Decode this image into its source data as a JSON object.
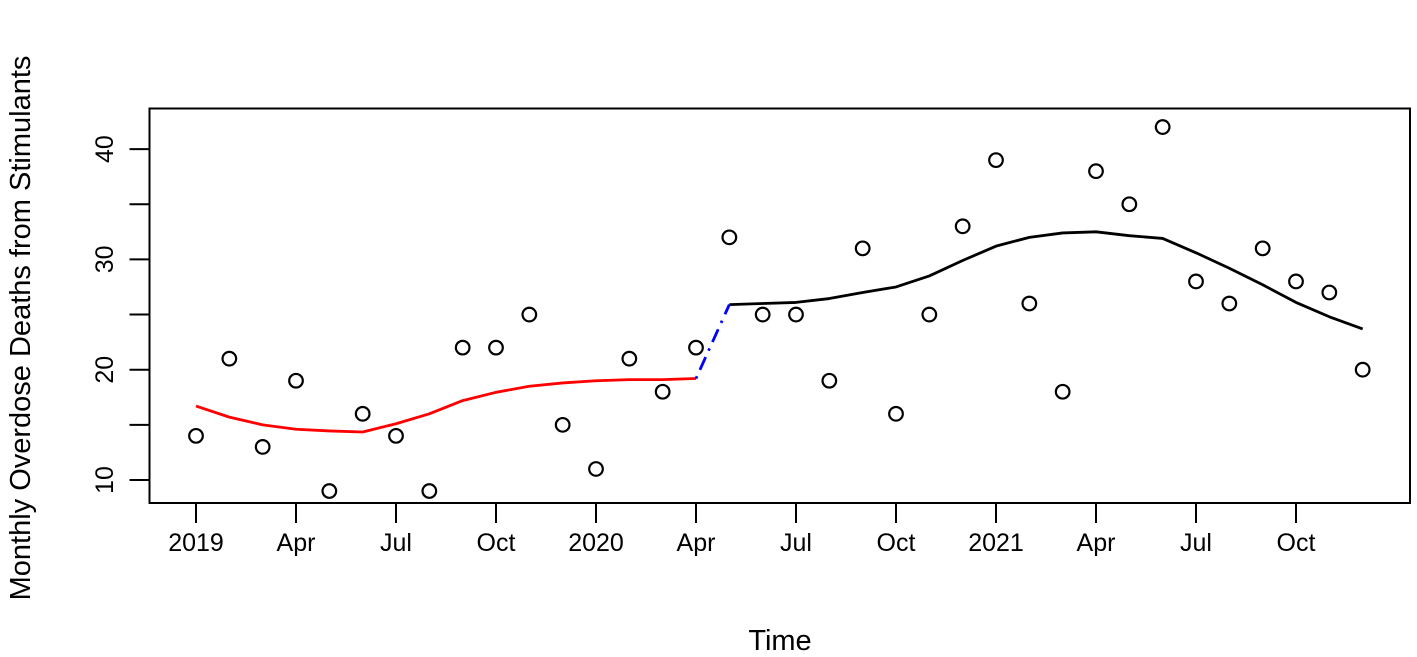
{
  "figure": {
    "background_color": "#FFFFFF",
    "frame_color": "#000000"
  },
  "chart_data": {
    "type": "scatter",
    "title": "",
    "xlabel": "Time",
    "ylabel": "Monthly Overdose Deaths from Stimulants",
    "grid": "off",
    "legend": "none",
    "x_axis": {
      "range": [
        2018.88,
        2022.03
      ],
      "ticks": [
        {
          "pos": 2019.0,
          "label": "2019"
        },
        {
          "pos": 2019.25,
          "label": "Apr"
        },
        {
          "pos": 2019.5,
          "label": "Jul"
        },
        {
          "pos": 2019.75,
          "label": "Oct"
        },
        {
          "pos": 2020.0,
          "label": "2020"
        },
        {
          "pos": 2020.25,
          "label": "Apr"
        },
        {
          "pos": 2020.5,
          "label": "Jul"
        },
        {
          "pos": 2020.75,
          "label": "Oct"
        },
        {
          "pos": 2021.0,
          "label": "2021"
        },
        {
          "pos": 2021.25,
          "label": "Apr"
        },
        {
          "pos": 2021.5,
          "label": "Jul"
        },
        {
          "pos": 2021.75,
          "label": "Oct"
        }
      ]
    },
    "y_axis": {
      "range": [
        7.9,
        43.6
      ],
      "tick_positions": [
        10,
        15,
        20,
        25,
        30,
        35,
        40
      ],
      "tick_labels": [
        {
          "pos": 10,
          "label": "10"
        },
        {
          "pos": 20,
          "label": "20"
        },
        {
          "pos": 30,
          "label": "30"
        },
        {
          "pos": 40,
          "label": "40"
        }
      ]
    },
    "series": [
      {
        "name": "monthly-overdose-deaths-points",
        "kind": "points",
        "marker": "open-circle",
        "color": "#000000",
        "months": [
          "2019-01",
          "2019-02",
          "2019-03",
          "2019-04",
          "2019-05",
          "2019-06",
          "2019-07",
          "2019-08",
          "2019-09",
          "2019-10",
          "2019-11",
          "2019-12",
          "2020-01",
          "2020-02",
          "2020-03",
          "2020-04",
          "2020-05",
          "2020-06",
          "2020-07",
          "2020-08",
          "2020-09",
          "2020-10",
          "2020-11",
          "2020-12",
          "2021-01",
          "2021-02",
          "2021-03",
          "2021-04",
          "2021-05",
          "2021-06",
          "2021-07",
          "2021-08",
          "2021-09",
          "2021-10",
          "2021-11",
          "2021-12"
        ],
        "values": [
          14,
          21,
          13,
          19,
          9,
          16,
          14,
          9,
          22,
          22,
          25,
          15,
          11,
          21,
          18,
          22,
          32,
          25,
          25,
          19,
          31,
          16,
          25,
          33,
          39,
          26,
          18,
          38,
          35,
          42,
          28,
          26,
          31,
          28,
          27,
          20
        ]
      },
      {
        "name": "smooth-fit-pre-period",
        "kind": "line",
        "color": "#FF0000",
        "style": "solid",
        "months": [
          "2019-01",
          "2019-02",
          "2019-03",
          "2019-04",
          "2019-05",
          "2019-06",
          "2019-07",
          "2019-08",
          "2019-09",
          "2019-10",
          "2019-11",
          "2019-12",
          "2020-01",
          "2020-02",
          "2020-03",
          "2020-04"
        ],
        "values": [
          16.7,
          15.7,
          15.0,
          14.6,
          14.45,
          14.35,
          15.1,
          16.0,
          17.2,
          17.95,
          18.5,
          18.8,
          19.0,
          19.1,
          19.1,
          19.2
        ]
      },
      {
        "name": "smooth-fit-post-period",
        "kind": "line",
        "color": "#000000",
        "style": "solid",
        "months": [
          "2020-05",
          "2020-06",
          "2020-07",
          "2020-08",
          "2020-09",
          "2020-10",
          "2020-11",
          "2020-12",
          "2021-01",
          "2021-02",
          "2021-03",
          "2021-04",
          "2021-05",
          "2021-06",
          "2021-07",
          "2021-08",
          "2021-09",
          "2021-10",
          "2021-11",
          "2021-12"
        ],
        "values": [
          25.9,
          26.0,
          26.1,
          26.45,
          27.0,
          27.5,
          28.5,
          29.9,
          31.2,
          32.0,
          32.4,
          32.5,
          32.15,
          31.9,
          30.6,
          29.2,
          27.7,
          26.1,
          24.8,
          23.7
        ]
      },
      {
        "name": "level-shift-connector",
        "kind": "line",
        "color": "#0000FF",
        "style": "dotdash",
        "months": [
          "2020-04",
          "2020-05"
        ],
        "values": [
          19.2,
          25.9
        ]
      }
    ]
  }
}
